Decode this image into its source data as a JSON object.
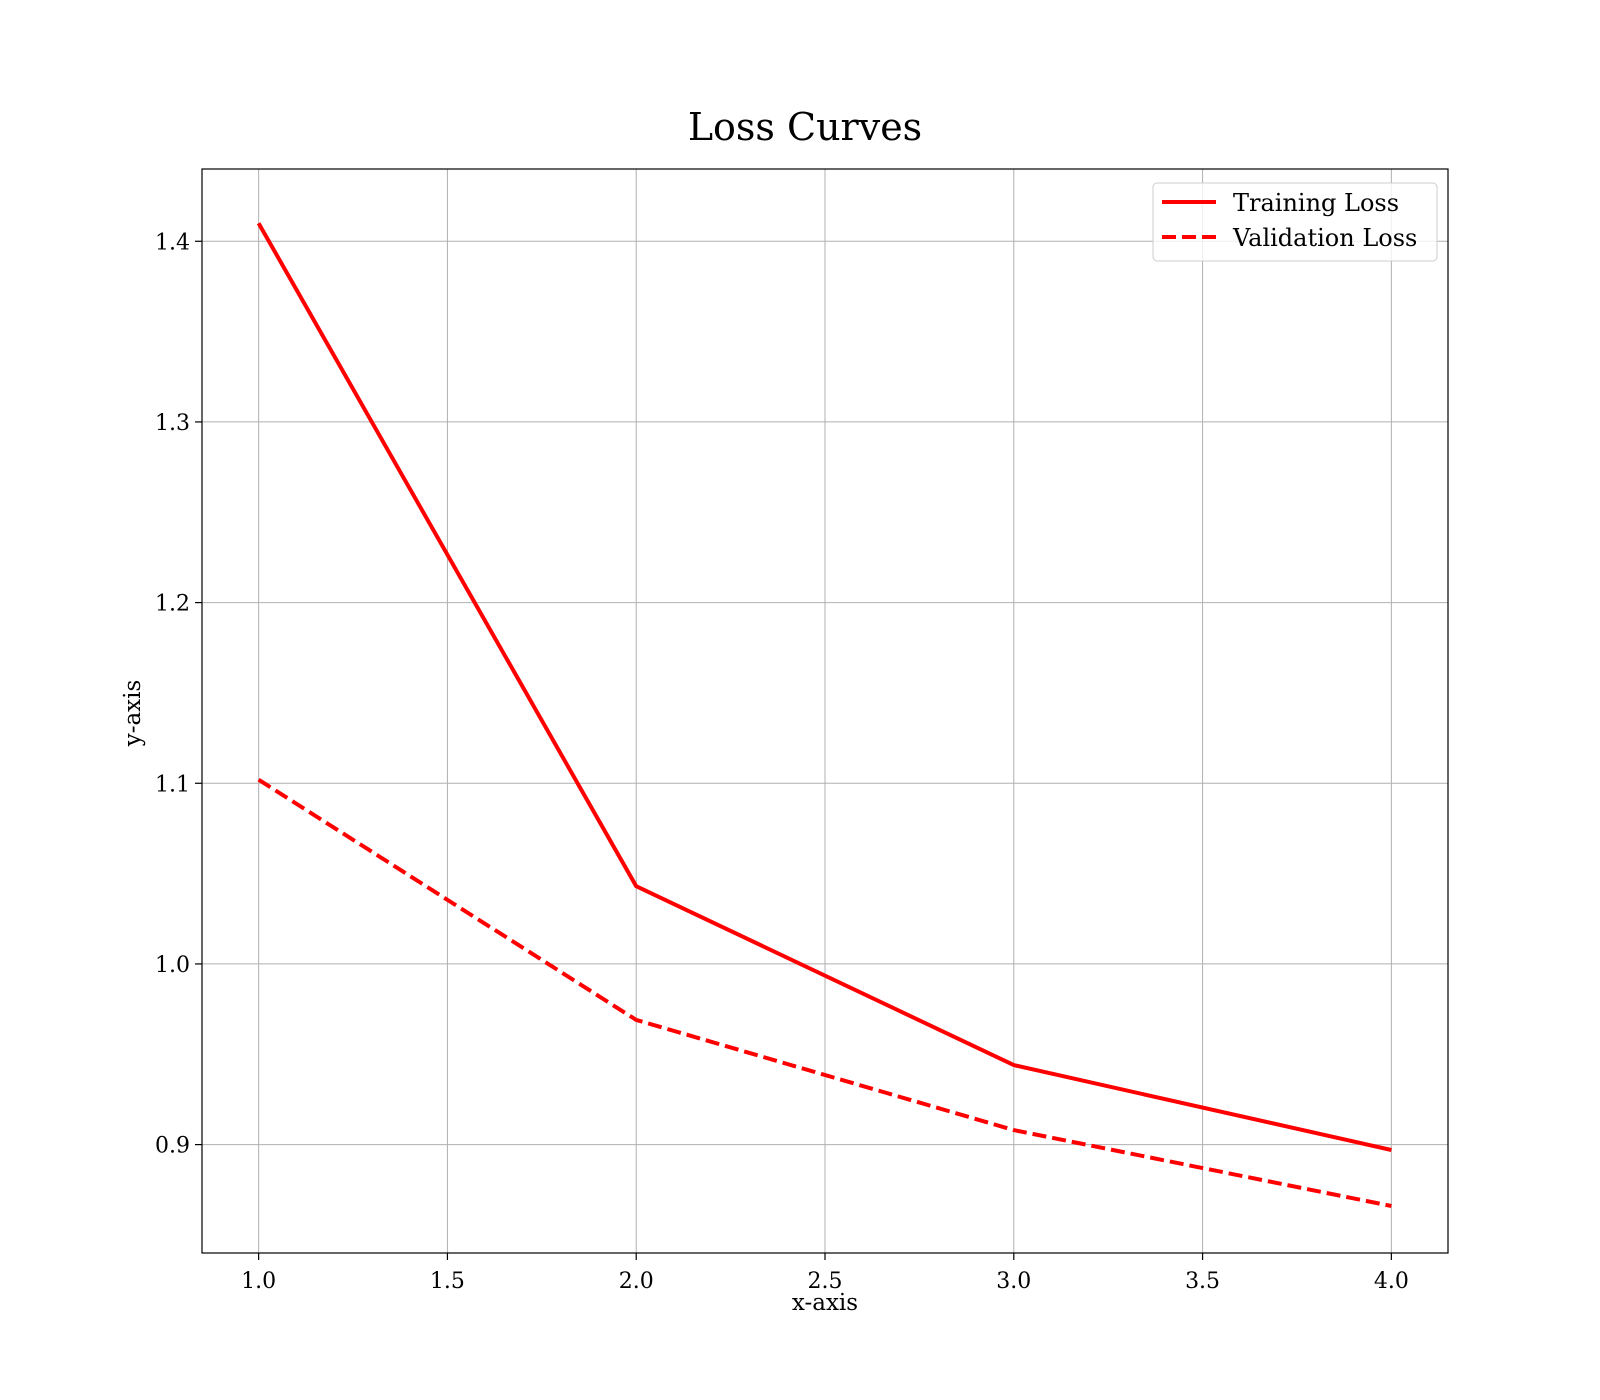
{
  "chart_data": {
    "type": "line",
    "title": "Loss Curves",
    "xlabel": "x-axis",
    "ylabel": "y-axis",
    "xlim": [
      0.85,
      4.15
    ],
    "ylim": [
      0.84,
      1.44
    ],
    "xticks": [
      1.0,
      1.5,
      2.0,
      2.5,
      3.0,
      3.5,
      4.0
    ],
    "xtick_labels": [
      "1.0",
      "1.5",
      "2.0",
      "2.5",
      "3.0",
      "3.5",
      "4.0"
    ],
    "yticks": [
      0.9,
      1.0,
      1.1,
      1.2,
      1.3,
      1.4
    ],
    "ytick_labels": [
      "0.9",
      "1.0",
      "1.1",
      "1.2",
      "1.3",
      "1.4"
    ],
    "grid": true,
    "legend_position": "top-right",
    "x": [
      1,
      2,
      3,
      4
    ],
    "series": [
      {
        "name": "Training Loss",
        "values": [
          1.41,
          1.043,
          0.944,
          0.897
        ],
        "color": "#ff0000",
        "style": "solid"
      },
      {
        "name": "Validation Loss",
        "values": [
          1.102,
          0.969,
          0.908,
          0.866
        ],
        "color": "#ff0000",
        "style": "dashed"
      }
    ]
  }
}
